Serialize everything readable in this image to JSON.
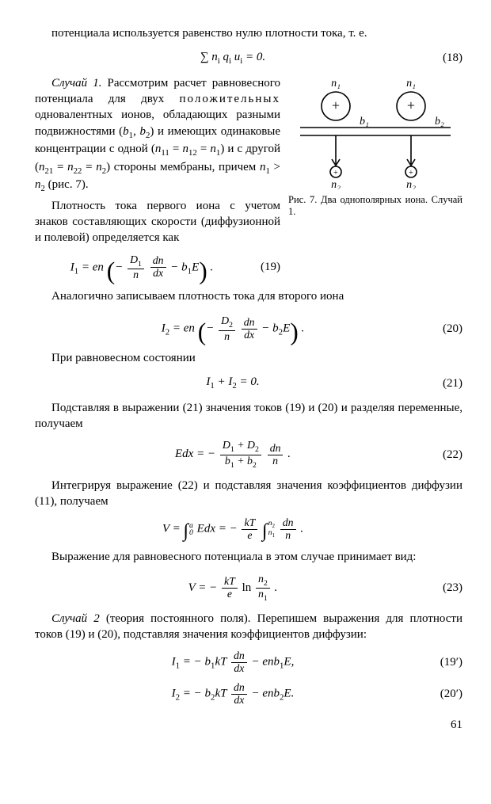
{
  "p_intro": "потенциала используется равенство нулю плотности тока, т. е.",
  "eq18": "∑ n<sub>i</sub> q<sub>i</sub> u<sub>i</sub> = 0.",
  "eq18n": "(18)",
  "p_case1a": "<span class='ital'>Случай 1.</span> Рассмотрим расчет равновесного потенциала для двух <span class='sp'>положительных</span> одновалентных ионов, обладающих разными подвижностями (<span class='ital'>b</span><sub>1</sub>, <span class='ital'>b</span><sub>2</sub>) и имеющих одинаковые концентрации с одной (<span class='ital'>n</span><sub>11</sub> = <span class='ital'>n</span><sub>12</sub> = <span class='ital'>n</span><sub>1</sub>) и с другой (<span class='ital'>n</span><sub>21</sub> = <span class='ital'>n</span><sub>22</sub> = <span class='ital'>n</span><sub>2</sub>) стороны мембраны, причем <span class='ital'>n</span><sub>1</sub> &gt; <span class='ital'>n</span><sub>2</sub> (рис. 7).",
  "p_dens": "Плотность тока первого иона с учетом знаков составляющих скорости (диффузионной и полевой) определяется как",
  "eq19": "I<sub>1</sub> = en <span class='bigparen'>(</span>− <span class='frac'><span class='top'>D<sub>1</sub></span><span class='bot'>n</span></span> <span class='frac'><span class='top'>dn</span><span class='bot'>dx</span></span> − b<sub>1</sub>E<span class='bigparen'>)</span> .",
  "eq19n": "(19)",
  "p_analog": "Аналогично записываем плотность тока для второго иона",
  "figcap": "Рис. 7. Два однополярных иона. Случай 1.",
  "eq20": "I<sub>2</sub> = en <span class='bigparen'>(</span>− <span class='frac'><span class='top'>D<sub>2</sub></span><span class='bot'>n</span></span> <span class='frac'><span class='top'>dn</span><span class='bot'>dx</span></span> − b<sub>2</sub>E<span class='bigparen'>)</span> .",
  "eq20n": "(20)",
  "p_equil": "При равновесном состоянии",
  "eq21": "I<sub>1</sub> + I<sub>2</sub> = 0.",
  "eq21n": "(21)",
  "p_subst": "Подставляя в выражении (21) значения токов (19) и (20) и разделяя переменные, получаем",
  "eq22": "Edx = − <span class='frac'><span class='top'>D<sub>1</sub> + D<sub>2</sub></span><span class='bot'>b<sub>1</sub> + b<sub>2</sub></span></span> <span class='frac'><span class='top'>dn</span><span class='bot'>n</span></span>  .",
  "eq22n": "(22)",
  "p_integr": "Интегрируя выражение (22) и подставляя значения коэффициентов диффузии (11), получаем",
  "eqV1": "V = <span class='intsym'>∫</span><span class='limits'><span class='t'>a</span><span class='b'>0</span></span> Edx = − <span class='frac'><span class='top'>kT</span><span class='bot'>e</span></span> <span class='intsym'>∫</span><span class='limits'><span class='t'>n<sub>2</sub></span><span class='b'>n<sub>1</sub></span></span> <span class='frac'><span class='top'>dn</span><span class='bot'>n</span></span>  .",
  "p_expr": "Выражение для равновесного потенциала в этом случае принимает вид:",
  "eq23": "V = − <span class='frac'><span class='top'>kT</span><span class='bot'>e</span></span> <span class='rm'>ln</span> <span class='frac'><span class='top'>n<sub>2</sub></span><span class='bot'>n<sub>1</sub></span></span>  .",
  "eq23n": "(23)",
  "p_case2": "<span class='ital'>Случай 2</span> (теория постоянного поля). Перепишем выражения для плотности токов (19) и (20), подставляя значения коэффициентов диффузии:",
  "eq19p": "I<sub>1</sub> = − b<sub>1</sub>kT <span class='frac'><span class='top'>dn</span><span class='bot'>dx</span></span> − enb<sub>1</sub>E,",
  "eq19pn": "(19′)",
  "eq20p": "I<sub>2</sub> = − b<sub>2</sub>kT <span class='frac'><span class='top'>dn</span><span class='bot'>dx</span></span> − enb<sub>2</sub>E.",
  "eq20pn": "(20′)",
  "pagenum": "61",
  "fig": {
    "n1": "n₁",
    "n2": "n₂",
    "b1": "b₁",
    "b2": "b₂",
    "stroke": "#000000",
    "linew": 1.6
  }
}
